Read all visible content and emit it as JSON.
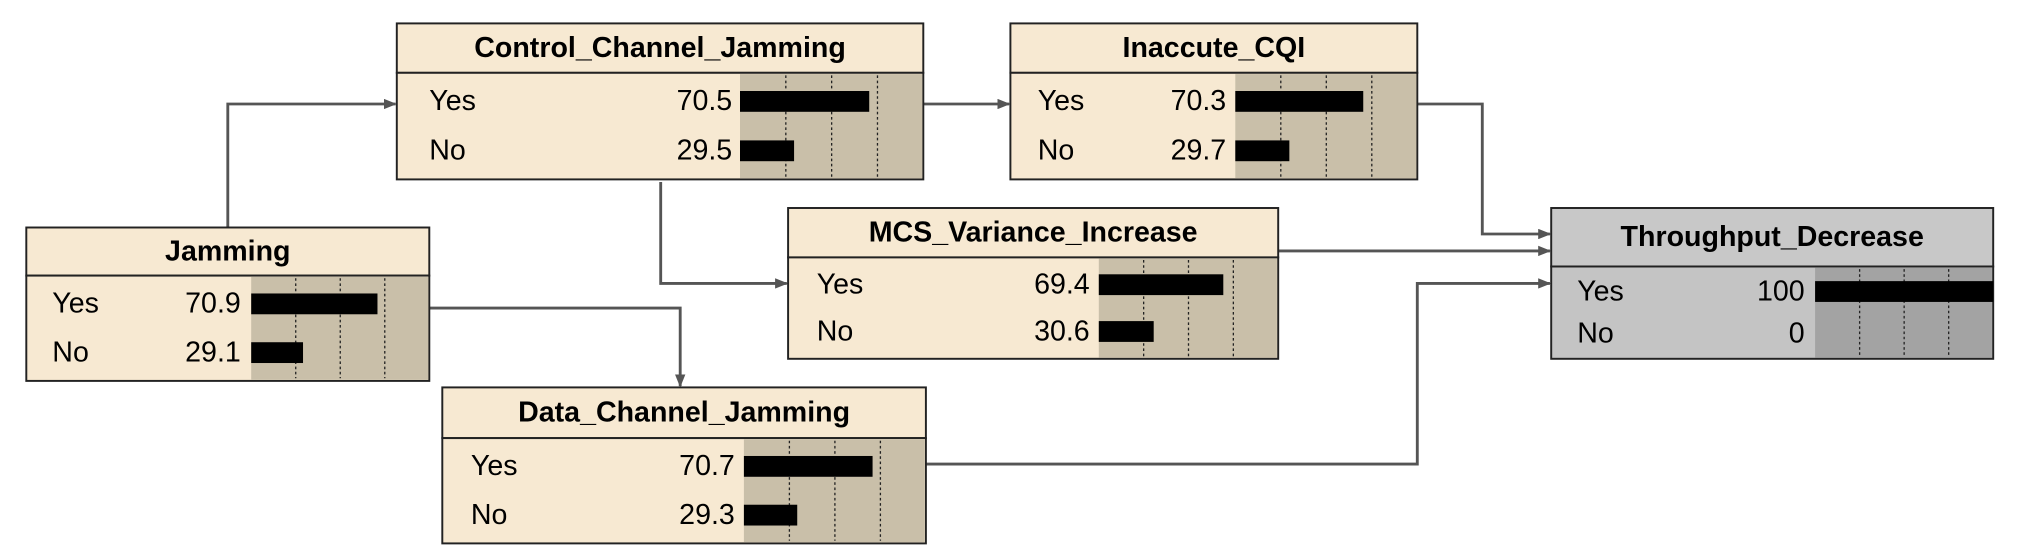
{
  "nodes": [
    {
      "title": "Jamming",
      "states": [
        {
          "label": "Yes",
          "value": 70.9
        },
        {
          "label": "No",
          "value": 29.1
        }
      ]
    },
    {
      "title": "Control_Channel_Jamming",
      "states": [
        {
          "label": "Yes",
          "value": 70.5
        },
        {
          "label": "No",
          "value": 29.5
        }
      ]
    },
    {
      "title": "Inaccute_CQI",
      "states": [
        {
          "label": "Yes",
          "value": 70.3
        },
        {
          "label": "No",
          "value": 29.7
        }
      ]
    },
    {
      "title": "MCS_Variance_Increase",
      "states": [
        {
          "label": "Yes",
          "value": 69.4
        },
        {
          "label": "No",
          "value": 30.6
        }
      ]
    },
    {
      "title": "Data_Channel_Jamming",
      "states": [
        {
          "label": "Yes",
          "value": 70.7
        },
        {
          "label": "No",
          "value": 29.3
        }
      ]
    },
    {
      "title": "Throughput_Decrease",
      "states": [
        {
          "label": "Yes",
          "value": 100
        },
        {
          "label": "No",
          "value": 0
        }
      ]
    }
  ]
}
